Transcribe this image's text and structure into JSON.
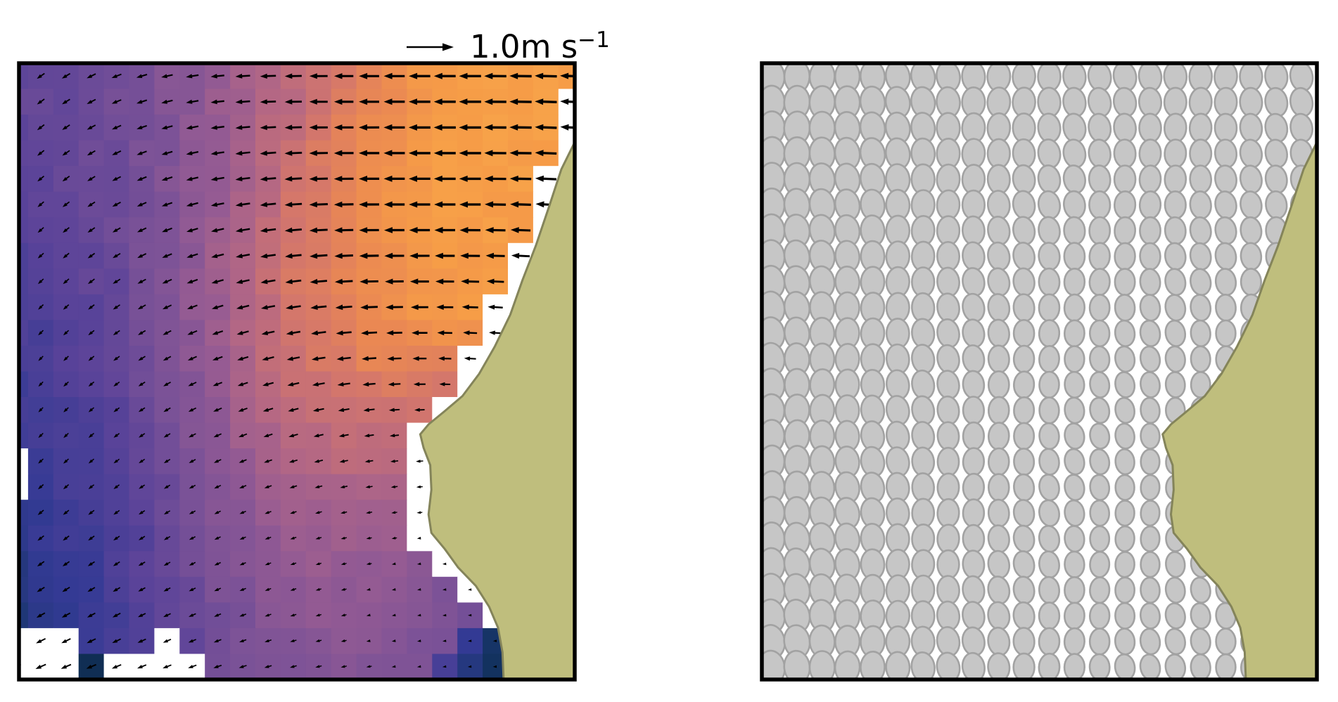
{
  "figure_type": "two-panel ocean current figure (speed+vectors, variance ellipses)",
  "quiver_key": {
    "text_main": "1.0m s",
    "text_sup": "−1",
    "represents_speed_m_per_s": 1.0
  },
  "colors": {
    "background": "#ffffff",
    "frame": "#000000",
    "arrow": "#000000",
    "masked_cell": "#ffffff",
    "land_fill": "#bfbe7d",
    "land_outline": "#84845a",
    "ellipse_fill": "#c6c6c6",
    "ellipse_stroke": "#a2a2a2"
  },
  "land": {
    "coastline_norm": [
      [
        1.0,
        0.128
      ],
      [
        0.976,
        0.172
      ],
      [
        0.954,
        0.232
      ],
      [
        0.93,
        0.296
      ],
      [
        0.906,
        0.352
      ],
      [
        0.884,
        0.408
      ],
      [
        0.856,
        0.46
      ],
      [
        0.828,
        0.504
      ],
      [
        0.798,
        0.54
      ],
      [
        0.764,
        0.566
      ],
      [
        0.737,
        0.586
      ],
      [
        0.722,
        0.602
      ],
      [
        0.728,
        0.624
      ],
      [
        0.74,
        0.652
      ],
      [
        0.742,
        0.692
      ],
      [
        0.737,
        0.732
      ],
      [
        0.742,
        0.762
      ],
      [
        0.766,
        0.788
      ],
      [
        0.79,
        0.818
      ],
      [
        0.822,
        0.848
      ],
      [
        0.846,
        0.882
      ],
      [
        0.862,
        0.916
      ],
      [
        0.87,
        0.956
      ],
      [
        0.872,
        1.0
      ]
    ]
  },
  "chart_data": [
    {
      "type": "heatmap",
      "panel": "left",
      "overlay": "quiver",
      "description": "surface current speed (normalized 0-1) with velocity vectors; sampled on 12x13 grid, displayed on 23x24 cells",
      "grid": {
        "cols": 23,
        "rows": 24
      },
      "quiver_key_value_m_per_s": 1.0,
      "colormap_stops": [
        [
          0.0,
          "#0d2c4d"
        ],
        [
          0.08,
          "#173569"
        ],
        [
          0.18,
          "#333a94"
        ],
        [
          0.3,
          "#5a4399"
        ],
        [
          0.42,
          "#7b5297"
        ],
        [
          0.52,
          "#955b93"
        ],
        [
          0.62,
          "#b36785"
        ],
        [
          0.72,
          "#d3766c"
        ],
        [
          0.82,
          "#ea8853"
        ],
        [
          0.92,
          "#f69c47"
        ],
        [
          1.0,
          "#f9ab4c"
        ]
      ],
      "speed_field_samples": [
        [
          0.34,
          0.36,
          0.4,
          0.45,
          0.52,
          0.6,
          0.7,
          0.8,
          0.88,
          0.92,
          0.93,
          0.94
        ],
        [
          0.33,
          0.35,
          0.39,
          0.45,
          0.53,
          0.62,
          0.72,
          0.82,
          0.9,
          0.93,
          0.94,
          0.94
        ],
        [
          0.31,
          0.34,
          0.38,
          0.45,
          0.54,
          0.64,
          0.75,
          0.85,
          0.91,
          0.93,
          0.94,
          0.93
        ],
        [
          0.29,
          0.32,
          0.37,
          0.45,
          0.55,
          0.66,
          0.77,
          0.86,
          0.91,
          0.93,
          0.93,
          0.92
        ],
        [
          0.27,
          0.31,
          0.36,
          0.45,
          0.56,
          0.68,
          0.78,
          0.86,
          0.9,
          0.92,
          0.92,
          0.9
        ],
        [
          0.25,
          0.29,
          0.34,
          0.44,
          0.56,
          0.68,
          0.77,
          0.84,
          0.88,
          0.9,
          0.89,
          0.8
        ],
        [
          0.23,
          0.27,
          0.33,
          0.42,
          0.54,
          0.65,
          0.73,
          0.78,
          0.78,
          0.72,
          0.62,
          0.52
        ],
        [
          0.21,
          0.25,
          0.31,
          0.4,
          0.51,
          0.61,
          0.67,
          0.7,
          0.66,
          0.56,
          0.47,
          0.42
        ],
        [
          0.19,
          0.23,
          0.29,
          0.37,
          0.47,
          0.56,
          0.61,
          0.62,
          0.57,
          0.48,
          0.4,
          0.34
        ],
        [
          0.16,
          0.21,
          0.27,
          0.35,
          0.44,
          0.52,
          0.56,
          0.56,
          0.51,
          0.43,
          0.35,
          0.27
        ],
        [
          0.13,
          0.19,
          0.25,
          0.33,
          0.42,
          0.49,
          0.52,
          0.52,
          0.47,
          0.4,
          0.32,
          0.22
        ],
        [
          0.1,
          0.17,
          0.23,
          0.31,
          0.4,
          0.46,
          0.49,
          0.48,
          0.44,
          0.37,
          0.3,
          0.16
        ],
        [
          0.08,
          0.15,
          0.21,
          0.29,
          0.37,
          0.44,
          0.46,
          0.45,
          0.41,
          0.34,
          0.27,
          0.12
        ]
      ],
      "arrow_angle_deg_samples": [
        [
          142,
          150,
          160,
          169,
          175,
          178,
          180,
          180,
          180,
          180,
          181,
          182
        ],
        [
          140,
          148,
          158,
          167,
          174,
          178,
          180,
          180,
          180,
          180,
          181,
          183
        ],
        [
          138,
          145,
          155,
          164,
          172,
          176,
          179,
          180,
          180,
          180,
          181,
          184
        ],
        [
          136,
          142,
          152,
          161,
          169,
          174,
          178,
          180,
          180,
          180,
          182,
          185
        ],
        [
          135,
          140,
          149,
          158,
          166,
          172,
          176,
          179,
          180,
          181,
          183,
          186
        ],
        [
          134,
          138,
          146,
          155,
          163,
          169,
          174,
          178,
          180,
          182,
          185,
          188
        ],
        [
          133,
          137,
          144,
          152,
          160,
          166,
          171,
          176,
          180,
          184,
          187,
          190
        ],
        [
          134,
          137,
          143,
          150,
          157,
          163,
          168,
          173,
          178,
          184,
          188,
          191
        ],
        [
          136,
          139,
          143,
          149,
          155,
          161,
          166,
          171,
          176,
          182,
          187,
          190
        ],
        [
          140,
          142,
          145,
          150,
          155,
          160,
          165,
          170,
          174,
          180,
          185,
          188
        ],
        [
          146,
          147,
          149,
          152,
          156,
          160,
          164,
          168,
          172,
          178,
          183,
          186
        ],
        [
          152,
          153,
          154,
          156,
          159,
          162,
          165,
          169,
          172,
          177,
          181,
          184
        ],
        [
          157,
          158,
          159,
          160,
          162,
          164,
          166,
          170,
          173,
          176,
          180,
          183
        ]
      ],
      "arrow_length_samples": [
        [
          0.3,
          0.33,
          0.37,
          0.43,
          0.52,
          0.62,
          0.73,
          0.83,
          0.88,
          0.91,
          0.92,
          0.92
        ],
        [
          0.28,
          0.31,
          0.35,
          0.42,
          0.52,
          0.63,
          0.75,
          0.84,
          0.9,
          0.92,
          0.92,
          0.9
        ],
        [
          0.26,
          0.29,
          0.33,
          0.41,
          0.52,
          0.64,
          0.76,
          0.85,
          0.9,
          0.91,
          0.9,
          0.87
        ],
        [
          0.24,
          0.27,
          0.31,
          0.39,
          0.51,
          0.63,
          0.75,
          0.83,
          0.87,
          0.87,
          0.84,
          0.78
        ],
        [
          0.22,
          0.25,
          0.29,
          0.37,
          0.48,
          0.6,
          0.71,
          0.78,
          0.8,
          0.78,
          0.7,
          0.6
        ],
        [
          0.2,
          0.22,
          0.26,
          0.33,
          0.43,
          0.53,
          0.62,
          0.67,
          0.66,
          0.58,
          0.45,
          0.33
        ],
        [
          0.18,
          0.2,
          0.23,
          0.28,
          0.36,
          0.44,
          0.5,
          0.52,
          0.48,
          0.37,
          0.25,
          0.17
        ],
        [
          0.18,
          0.19,
          0.21,
          0.24,
          0.29,
          0.34,
          0.37,
          0.36,
          0.3,
          0.21,
          0.14,
          0.11
        ],
        [
          0.2,
          0.2,
          0.2,
          0.21,
          0.23,
          0.25,
          0.26,
          0.23,
          0.18,
          0.12,
          0.09,
          0.09
        ],
        [
          0.24,
          0.23,
          0.22,
          0.2,
          0.19,
          0.18,
          0.17,
          0.14,
          0.11,
          0.08,
          0.07,
          0.09
        ],
        [
          0.29,
          0.27,
          0.25,
          0.22,
          0.2,
          0.17,
          0.14,
          0.11,
          0.09,
          0.07,
          0.07,
          0.11
        ],
        [
          0.36,
          0.33,
          0.3,
          0.26,
          0.23,
          0.19,
          0.15,
          0.11,
          0.09,
          0.07,
          0.09,
          0.14
        ],
        [
          0.44,
          0.4,
          0.36,
          0.32,
          0.28,
          0.23,
          0.18,
          0.13,
          0.1,
          0.09,
          0.11,
          0.17
        ]
      ],
      "masked_cells": [
        [
          0,
          15
        ],
        [
          0,
          16
        ],
        [
          0,
          22
        ],
        [
          1,
          22
        ],
        [
          2,
          22
        ],
        [
          6,
          22
        ],
        [
          0,
          23
        ],
        [
          1,
          23
        ],
        [
          2,
          23
        ],
        [
          4,
          23
        ],
        [
          5,
          23
        ],
        [
          6,
          23
        ],
        [
          7,
          23
        ],
        [
          22,
          1
        ],
        [
          22,
          2
        ],
        [
          22,
          3
        ],
        [
          22,
          4
        ]
      ],
      "cell_overrides": [
        [
          3,
          23,
          0.02
        ],
        [
          19,
          22,
          0.07
        ],
        [
          19,
          23,
          0.05
        ],
        [
          18,
          22,
          0.18
        ],
        [
          18,
          23,
          0.13
        ],
        [
          17,
          23,
          0.24
        ],
        [
          22,
          0,
          0.92
        ]
      ]
    },
    {
      "type": "scatter",
      "panel": "right",
      "marker": "ellipse",
      "description": "velocity variance ellipses (normalized size 0-1); sampled on 12x13 grid, displayed on 22x24 centers",
      "grid": {
        "cols": 22,
        "rows": 24
      },
      "ellipse_size_samples": [
        [
          0.95,
          0.9,
          0.85,
          0.8,
          0.75,
          0.72,
          0.7,
          0.7,
          0.72,
          0.72,
          0.7,
          0.7
        ],
        [
          1.0,
          0.95,
          0.88,
          0.8,
          0.75,
          0.7,
          0.68,
          0.66,
          0.66,
          0.66,
          0.65,
          0.65
        ],
        [
          1.0,
          0.92,
          0.85,
          0.78,
          0.72,
          0.66,
          0.62,
          0.6,
          0.6,
          0.6,
          0.6,
          0.6
        ],
        [
          0.98,
          0.9,
          0.82,
          0.74,
          0.68,
          0.62,
          0.58,
          0.55,
          0.55,
          0.55,
          0.55,
          0.58
        ],
        [
          0.96,
          0.88,
          0.8,
          0.72,
          0.64,
          0.58,
          0.54,
          0.5,
          0.5,
          0.5,
          0.52,
          0.55
        ],
        [
          0.95,
          0.86,
          0.78,
          0.7,
          0.62,
          0.55,
          0.5,
          0.46,
          0.45,
          0.46,
          0.5,
          0.52
        ],
        [
          0.95,
          0.85,
          0.76,
          0.68,
          0.6,
          0.52,
          0.46,
          0.42,
          0.42,
          0.44,
          0.48,
          0.5
        ],
        [
          0.95,
          0.85,
          0.75,
          0.66,
          0.58,
          0.5,
          0.44,
          0.4,
          0.4,
          0.42,
          0.46,
          0.5
        ],
        [
          0.96,
          0.86,
          0.76,
          0.66,
          0.58,
          0.5,
          0.44,
          0.4,
          0.38,
          0.4,
          0.44,
          0.48
        ],
        [
          0.97,
          0.88,
          0.78,
          0.68,
          0.6,
          0.52,
          0.45,
          0.4,
          0.38,
          0.4,
          0.44,
          0.48
        ],
        [
          0.98,
          0.9,
          0.8,
          0.7,
          0.62,
          0.54,
          0.47,
          0.42,
          0.4,
          0.42,
          0.45,
          0.5
        ],
        [
          1.0,
          0.92,
          0.83,
          0.74,
          0.65,
          0.57,
          0.5,
          0.45,
          0.42,
          0.44,
          0.48,
          0.52
        ],
        [
          1.0,
          0.94,
          0.86,
          0.77,
          0.68,
          0.6,
          0.53,
          0.47,
          0.45,
          0.46,
          0.5,
          0.54
        ]
      ]
    }
  ]
}
